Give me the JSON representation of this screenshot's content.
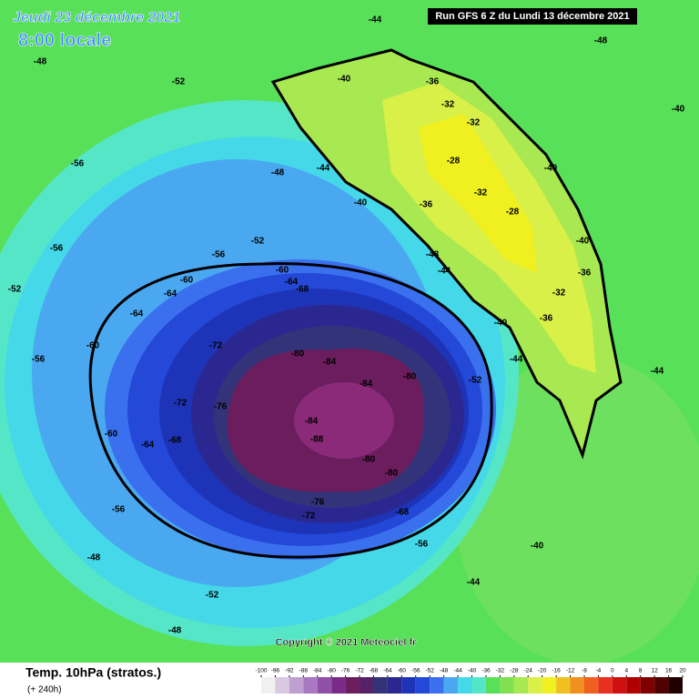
{
  "header": {
    "date": "Jeudi 23 décembre 2021",
    "time": "8:00 locale",
    "run": "Run GFS 6 Z du Lundi 13 décembre 2021"
  },
  "copyright": "Copyright © 2021 Meteociel.fr",
  "footer": {
    "title": "Temp. 10hPa (stratos.)",
    "lead": "(+ 240h)"
  },
  "colorbar": {
    "ticks": [
      -100,
      -96,
      -92,
      -88,
      -84,
      -80,
      -76,
      -72,
      -68,
      -64,
      -60,
      -56,
      -52,
      -48,
      -44,
      -40,
      -36,
      -32,
      -28,
      -24,
      -20,
      -16,
      -12,
      -8,
      -4,
      0,
      4,
      8,
      12,
      16,
      20
    ],
    "colors": [
      "#f0f0f0",
      "#d8c8e0",
      "#c0a0d0",
      "#a878c0",
      "#9050a8",
      "#7a2a88",
      "#6b1d5e",
      "#552266",
      "#33337a",
      "#2a2890",
      "#1e34b8",
      "#2448d8",
      "#3a70ee",
      "#4aa8f0",
      "#44d8e8",
      "#55e6c8",
      "#58e058",
      "#80e050",
      "#a8e850",
      "#d8f048",
      "#f0f020",
      "#f0c020",
      "#f09020",
      "#f06020",
      "#e83020",
      "#d01010",
      "#b00000",
      "#800000",
      "#500000",
      "#200000"
    ]
  },
  "contour_labels": [
    -44,
    -40,
    -36,
    -32,
    -32,
    -28,
    -28,
    -32,
    -36,
    -40,
    -40,
    -36,
    -32,
    -36,
    -40,
    -44,
    -44,
    -48,
    -40,
    -44,
    -48,
    -52,
    -56,
    -60,
    -64,
    -68,
    -60,
    -64,
    -64,
    -60,
    -56,
    -56,
    -52,
    -48,
    -52,
    -56,
    -72,
    -76,
    -80,
    -84,
    -84,
    -80,
    -84,
    -88,
    -80,
    -80,
    -76,
    -72,
    -68,
    -56,
    -52,
    -60,
    -64,
    -68,
    -72,
    -56,
    -48,
    -52,
    -48,
    -44,
    -40,
    -44,
    -40,
    -48
  ]
}
